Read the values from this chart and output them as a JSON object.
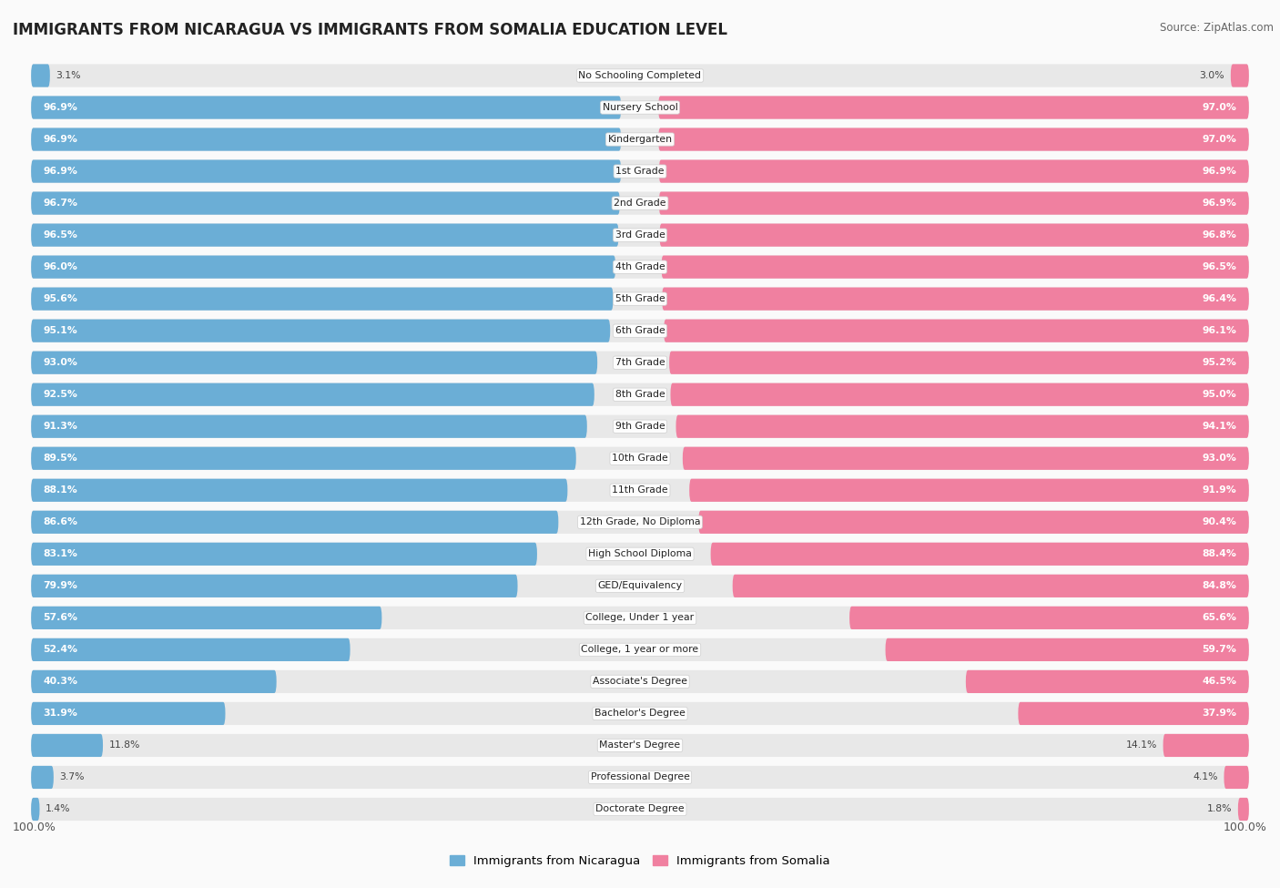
{
  "title": "IMMIGRANTS FROM NICARAGUA VS IMMIGRANTS FROM SOMALIA EDUCATION LEVEL",
  "source": "Source: ZipAtlas.com",
  "categories": [
    "No Schooling Completed",
    "Nursery School",
    "Kindergarten",
    "1st Grade",
    "2nd Grade",
    "3rd Grade",
    "4th Grade",
    "5th Grade",
    "6th Grade",
    "7th Grade",
    "8th Grade",
    "9th Grade",
    "10th Grade",
    "11th Grade",
    "12th Grade, No Diploma",
    "High School Diploma",
    "GED/Equivalency",
    "College, Under 1 year",
    "College, 1 year or more",
    "Associate's Degree",
    "Bachelor's Degree",
    "Master's Degree",
    "Professional Degree",
    "Doctorate Degree"
  ],
  "nicaragua_values": [
    3.1,
    96.9,
    96.9,
    96.9,
    96.7,
    96.5,
    96.0,
    95.6,
    95.1,
    93.0,
    92.5,
    91.3,
    89.5,
    88.1,
    86.6,
    83.1,
    79.9,
    57.6,
    52.4,
    40.3,
    31.9,
    11.8,
    3.7,
    1.4
  ],
  "somalia_values": [
    3.0,
    97.0,
    97.0,
    96.9,
    96.9,
    96.8,
    96.5,
    96.4,
    96.1,
    95.2,
    95.0,
    94.1,
    93.0,
    91.9,
    90.4,
    88.4,
    84.8,
    65.6,
    59.7,
    46.5,
    37.9,
    14.1,
    4.1,
    1.8
  ],
  "nicaragua_color": "#6BAED6",
  "somalia_color": "#F080A0",
  "bg_row_color": "#E8E8E8",
  "label_nicaragua": "Immigrants from Nicaragua",
  "label_somalia": "Immigrants from Somalia",
  "fig_width": 14.06,
  "fig_height": 9.75
}
